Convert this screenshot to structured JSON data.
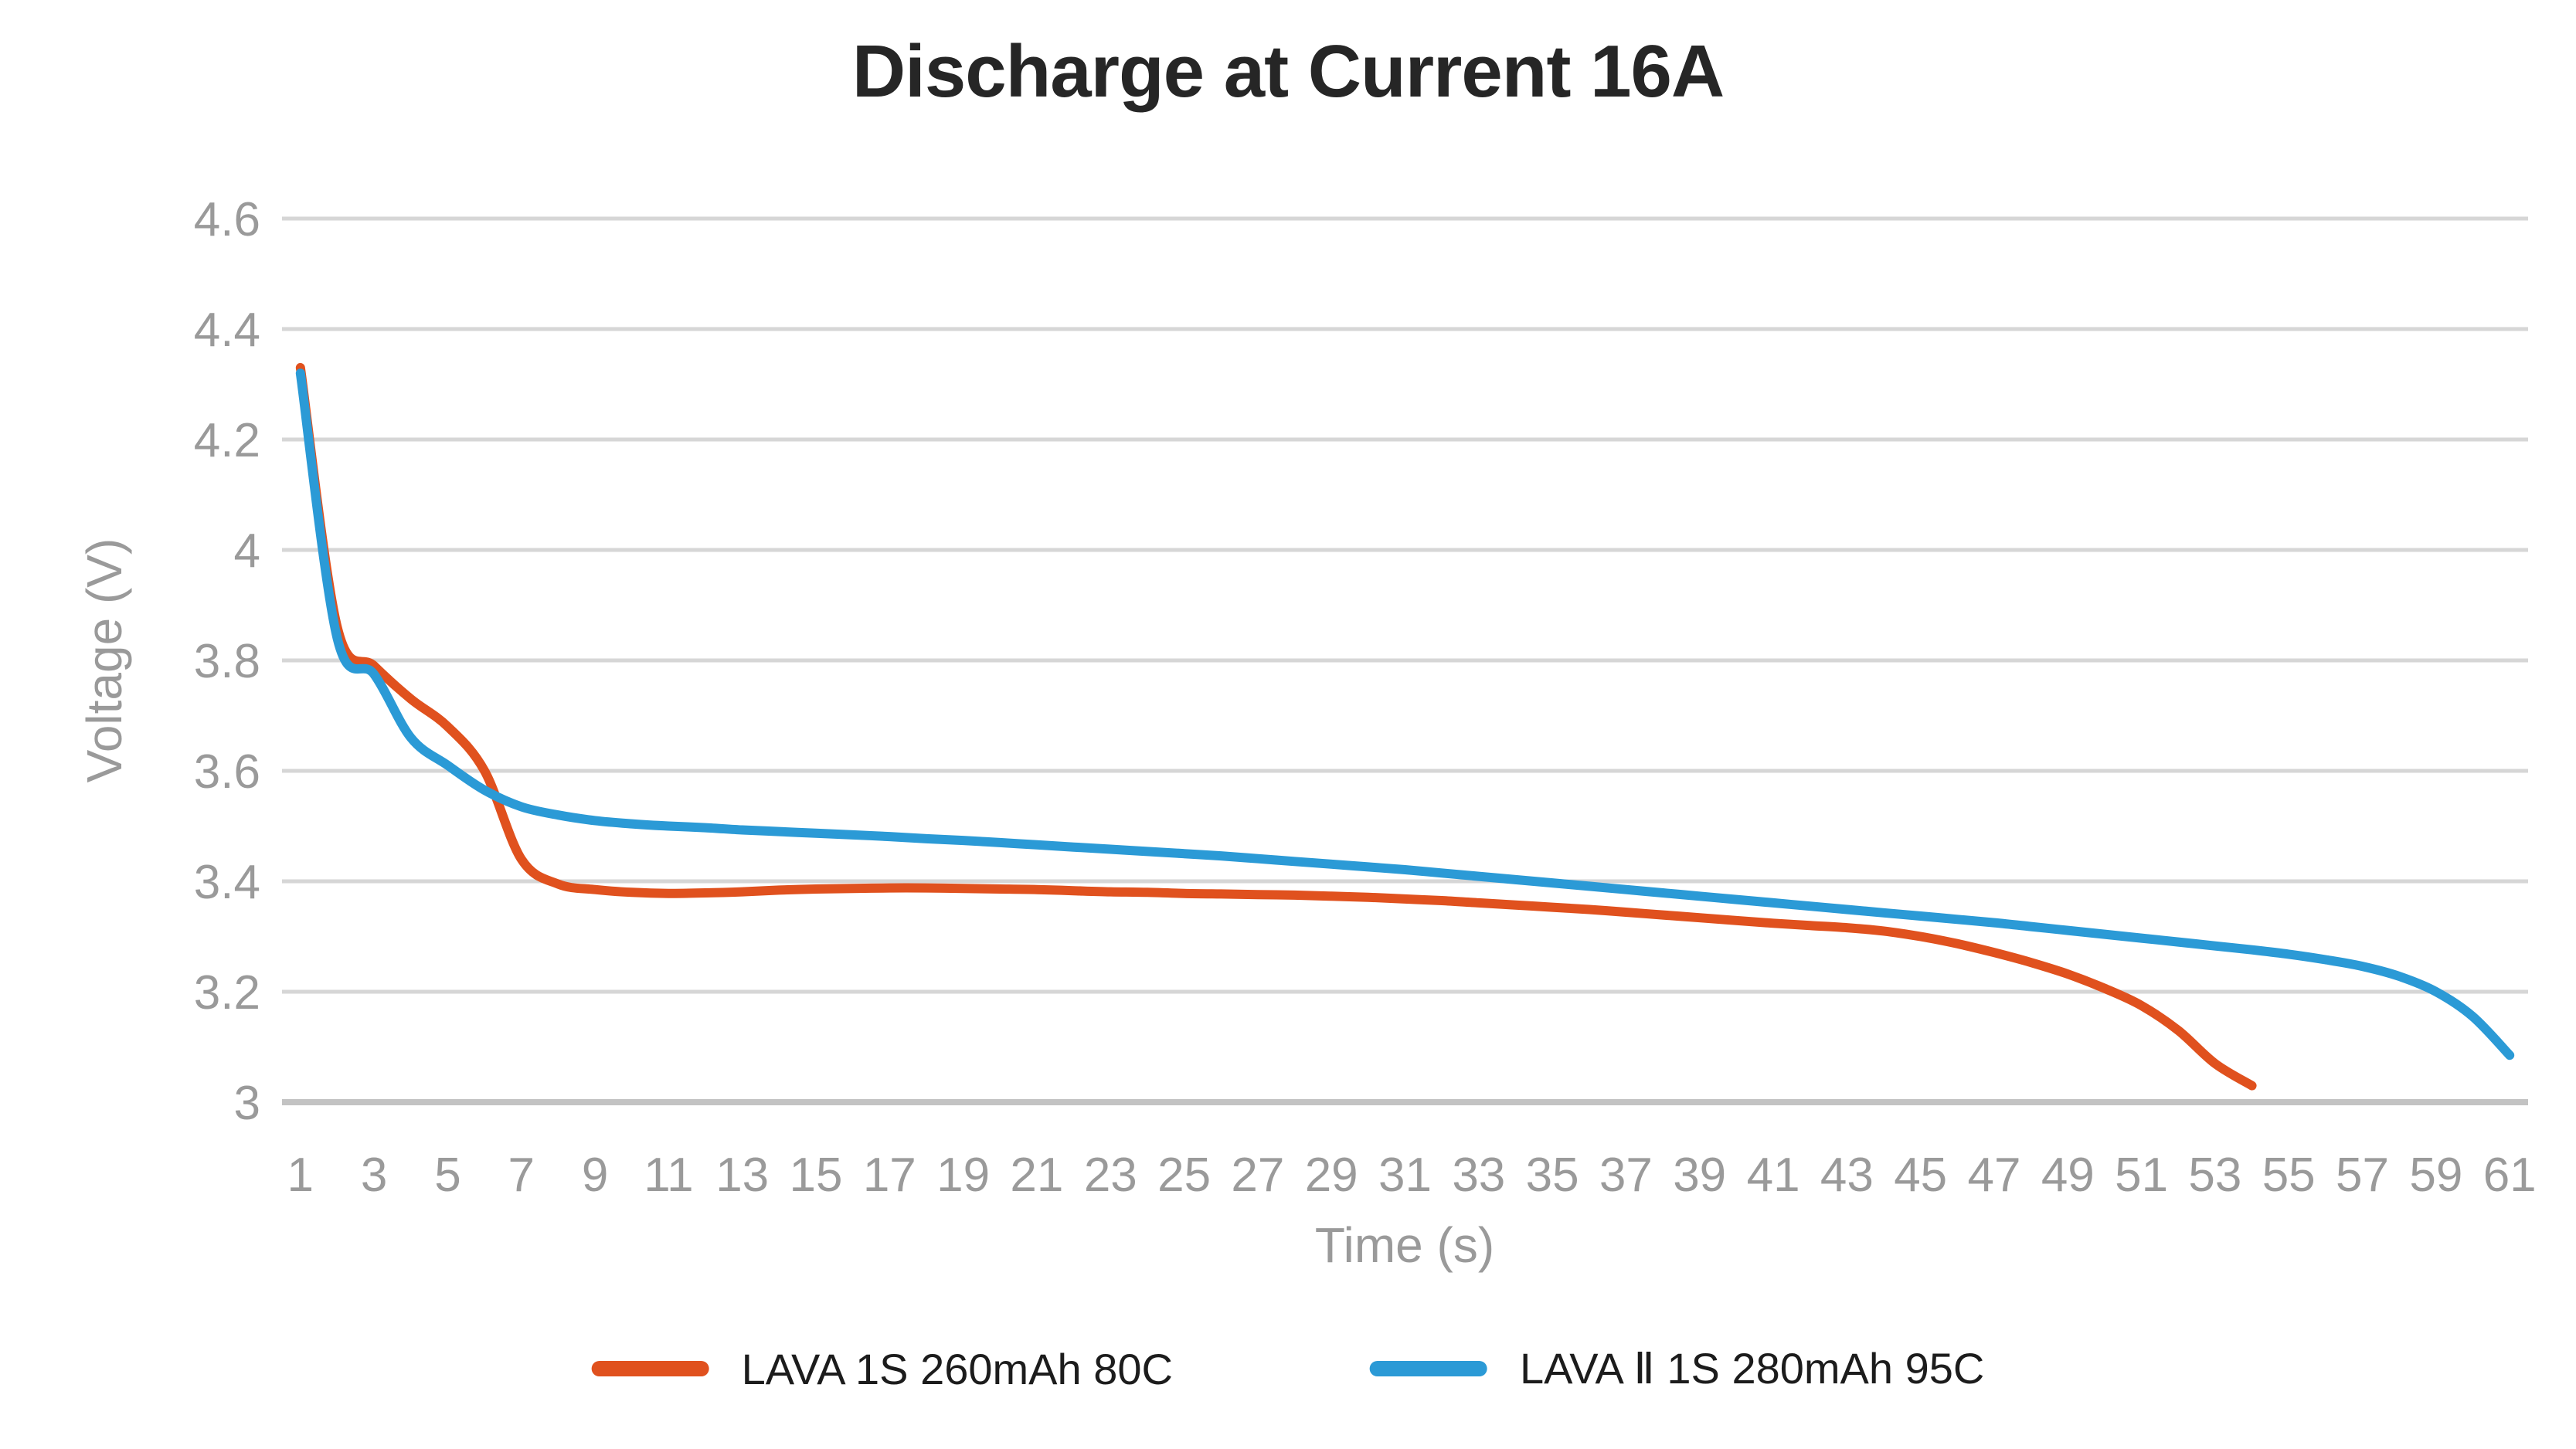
{
  "title": "Discharge at Current 16A",
  "colors": {
    "background": "#FFFFFF",
    "gridline": "#D6D6D6",
    "axis_line": "#C3C3C3",
    "tick_label": "#9A9A9A",
    "axis_name": "#9A9A9A",
    "title_text": "#262626",
    "legend_text": "#1C1C1C",
    "series_orange": "#E0511E",
    "series_blue": "#2B9AD6"
  },
  "chart_data": {
    "type": "line",
    "title": "Discharge at Current 16A",
    "xlabel": "Time (s)",
    "ylabel": "Voltage (V)",
    "grid": true,
    "legend_position": "bottom",
    "ylim": [
      3,
      4.6
    ],
    "ytick_step": 0.2,
    "ytick_labels": [
      "4.6",
      "4.4",
      "4.2",
      "4",
      "3.8",
      "3.6",
      "3.4",
      "3.2",
      "3"
    ],
    "x": [
      1,
      2,
      3,
      4,
      5,
      6,
      7,
      8,
      9,
      10,
      11,
      12,
      13,
      14,
      15,
      16,
      17,
      18,
      19,
      20,
      21,
      22,
      23,
      24,
      25,
      26,
      27,
      28,
      29,
      30,
      31,
      32,
      33,
      34,
      35,
      36,
      37,
      38,
      39,
      40,
      41,
      42,
      43,
      44,
      45,
      46,
      47,
      48,
      49,
      50,
      51,
      52,
      53,
      54,
      55,
      56,
      57,
      58,
      59,
      60,
      61
    ],
    "x_tick_labels": [
      1,
      3,
      5,
      7,
      9,
      11,
      13,
      15,
      17,
      19,
      21,
      23,
      25,
      27,
      29,
      31,
      33,
      35,
      37,
      39,
      41,
      43,
      45,
      47,
      49,
      51,
      53,
      55,
      57,
      59,
      61
    ],
    "series": [
      {
        "name": "LAVA 1S 260mAh 80C",
        "color": "#E0511E",
        "x_start": 1,
        "values": [
          4.33,
          3.86,
          3.79,
          3.73,
          3.68,
          3.6,
          3.44,
          3.395,
          3.385,
          3.38,
          3.378,
          3.379,
          3.381,
          3.384,
          3.386,
          3.387,
          3.388,
          3.388,
          3.387,
          3.386,
          3.385,
          3.383,
          3.381,
          3.38,
          3.378,
          3.377,
          3.376,
          3.375,
          3.373,
          3.371,
          3.368,
          3.365,
          3.361,
          3.357,
          3.353,
          3.349,
          3.344,
          3.339,
          3.334,
          3.329,
          3.324,
          3.32,
          3.316,
          3.31,
          3.3,
          3.287,
          3.271,
          3.253,
          3.232,
          3.206,
          3.175,
          3.13,
          3.07,
          3.03
        ]
      },
      {
        "name": "LAVA Ⅱ 1S 280mAh 95C",
        "color": "#2B9AD6",
        "x_start": 1,
        "values": [
          4.32,
          3.84,
          3.775,
          3.66,
          3.61,
          3.565,
          3.535,
          3.52,
          3.51,
          3.504,
          3.5,
          3.497,
          3.493,
          3.49,
          3.487,
          3.484,
          3.481,
          3.477,
          3.474,
          3.47,
          3.466,
          3.462,
          3.458,
          3.454,
          3.45,
          3.446,
          3.441,
          3.436,
          3.431,
          3.426,
          3.421,
          3.415,
          3.409,
          3.403,
          3.397,
          3.391,
          3.385,
          3.379,
          3.373,
          3.367,
          3.361,
          3.355,
          3.349,
          3.343,
          3.337,
          3.331,
          3.325,
          3.318,
          3.311,
          3.304,
          3.297,
          3.29,
          3.283,
          3.276,
          3.268,
          3.258,
          3.246,
          3.228,
          3.2,
          3.155,
          3.085
        ]
      }
    ]
  }
}
